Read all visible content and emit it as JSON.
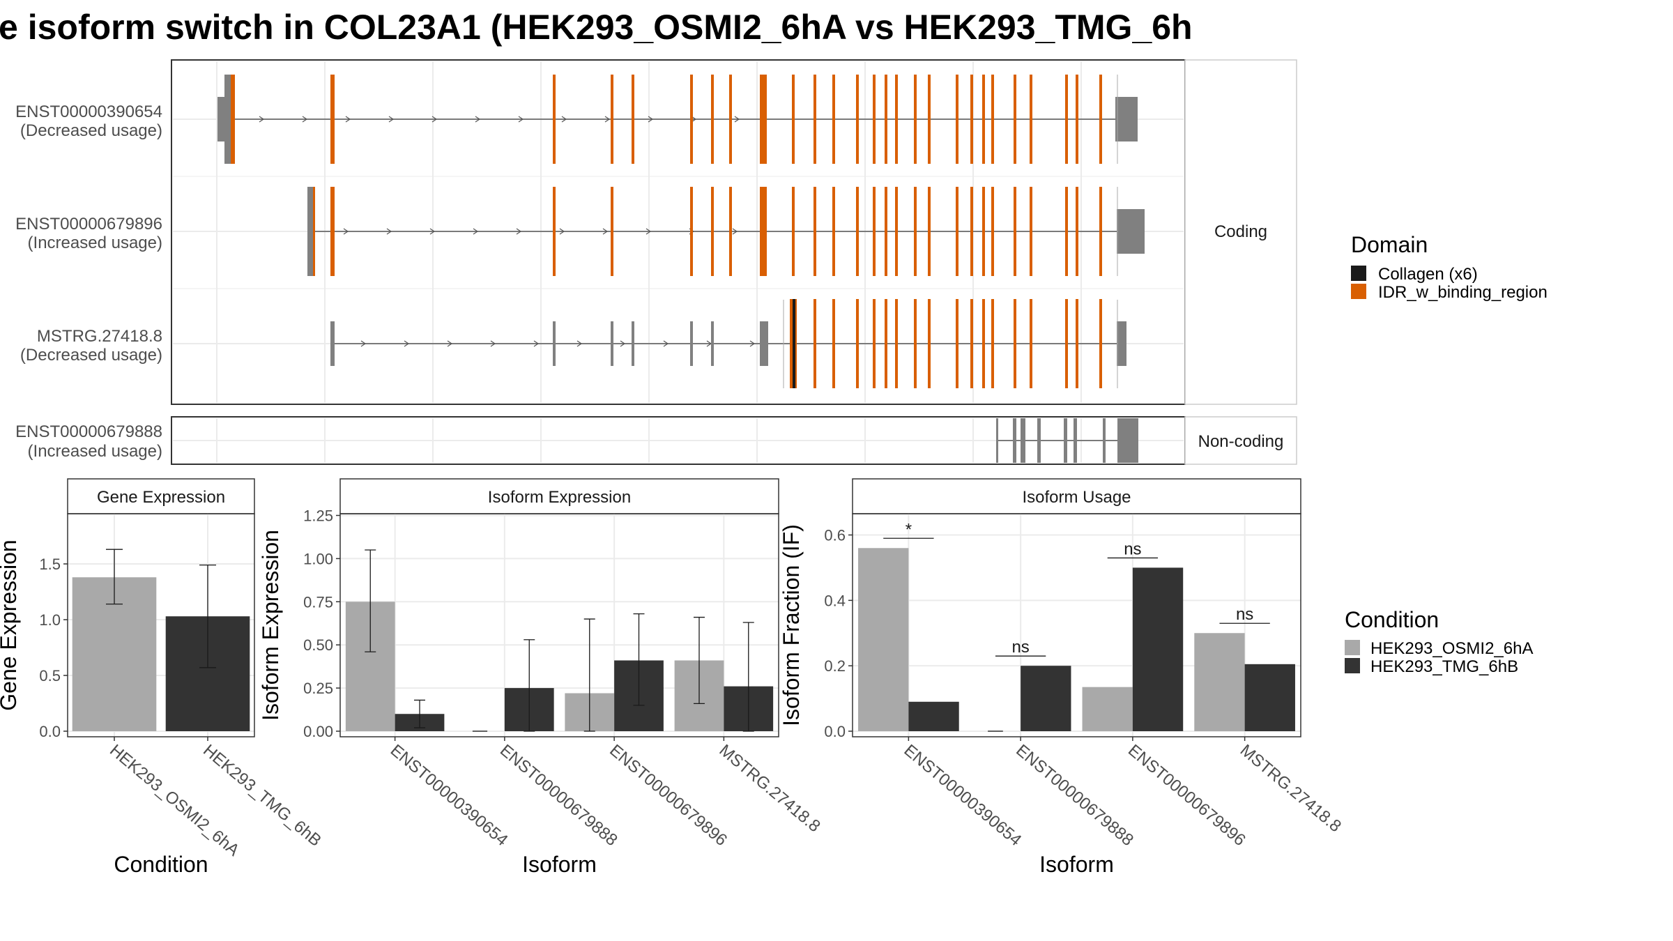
{
  "figure": {
    "title": "e isoform switch in COL23A1 (HEK293_OSMI2_6hA vs HEK293_TMG_6h"
  },
  "colors": {
    "idr": "#D95F02",
    "collagen": "#1A1A1A",
    "utr": "#808080",
    "cond1": "#A9A9A9",
    "cond2": "#333333",
    "panel_border": "#333333",
    "strip_fill": "#FFFFFF",
    "grid": "#EBEBEB"
  },
  "transcript_panel": {
    "facets": [
      {
        "label": "Coding"
      },
      {
        "label": "Non-coding"
      }
    ],
    "transcripts": [
      {
        "id": "ENST00000390654",
        "note": "(Decreased usage)"
      },
      {
        "id": "ENST00000679896",
        "note": "(Increased usage)"
      },
      {
        "id": "MSTRG.27418.8",
        "note": "(Decreased usage)"
      },
      {
        "id": "ENST00000679888",
        "note": "(Increased usage)"
      }
    ],
    "legend": {
      "title": "Domain",
      "items": [
        {
          "label": "Collagen (x6)",
          "color": "#1A1A1A"
        },
        {
          "label": "IDR_w_binding_region",
          "color": "#D95F02"
        }
      ]
    }
  },
  "chart_data": [
    {
      "type": "bar",
      "strip": "Gene Expression",
      "xlabel": "Condition",
      "ylabel": "Gene Expression",
      "ylim": [
        0,
        1.95
      ],
      "yticks": [
        "0.0",
        "0.5",
        "1.0",
        "1.5"
      ],
      "categories": [
        "HEK293_OSMI2_6hA",
        "HEK293_TMG_6hB"
      ],
      "values": [
        1.38,
        1.03
      ],
      "error_low": [
        1.14,
        0.57
      ],
      "error_high": [
        1.63,
        1.49
      ]
    },
    {
      "type": "bar",
      "strip": "Isoform Expression",
      "xlabel": "Isoform",
      "ylabel": "Isoform Expression",
      "ylim": [
        0,
        1.26
      ],
      "yticks": [
        "0.00",
        "0.25",
        "0.50",
        "0.75",
        "1.00",
        "1.25"
      ],
      "categories": [
        "ENST00000390654",
        "ENST00000679888",
        "ENST00000679896",
        "MSTRG.27418.8"
      ],
      "series": [
        {
          "name": "HEK293_OSMI2_6hA",
          "values": [
            0.75,
            0.0,
            0.22,
            0.41
          ],
          "error_low": [
            0.46,
            0.0,
            0.0,
            0.16
          ],
          "error_high": [
            1.05,
            0.0,
            0.65,
            0.66
          ]
        },
        {
          "name": "HEK293_TMG_6hB",
          "values": [
            0.1,
            0.25,
            0.41,
            0.26
          ],
          "error_low": [
            0.02,
            0.0,
            0.15,
            0.0
          ],
          "error_high": [
            0.18,
            0.53,
            0.68,
            0.63
          ]
        }
      ]
    },
    {
      "type": "bar",
      "strip": "Isoform Usage",
      "xlabel": "Isoform",
      "ylabel": "Isoform Fraction (IF)",
      "ylim": [
        0,
        0.665
      ],
      "yticks": [
        "0.0",
        "0.2",
        "0.4",
        "0.6"
      ],
      "categories": [
        "ENST00000390654",
        "ENST00000679888",
        "ENST00000679896",
        "MSTRG.27418.8"
      ],
      "series": [
        {
          "name": "HEK293_OSMI2_6hA",
          "values": [
            0.56,
            0.0,
            0.135,
            0.3
          ]
        },
        {
          "name": "HEK293_TMG_6hB",
          "values": [
            0.09,
            0.2,
            0.5,
            0.205
          ]
        }
      ],
      "significance": [
        "*",
        "ns",
        "ns",
        "ns"
      ]
    }
  ],
  "condition_legend": {
    "title": "Condition",
    "items": [
      {
        "label": "HEK293_OSMI2_6hA",
        "color": "#A9A9A9"
      },
      {
        "label": "HEK293_TMG_6hB",
        "color": "#333333"
      }
    ]
  }
}
